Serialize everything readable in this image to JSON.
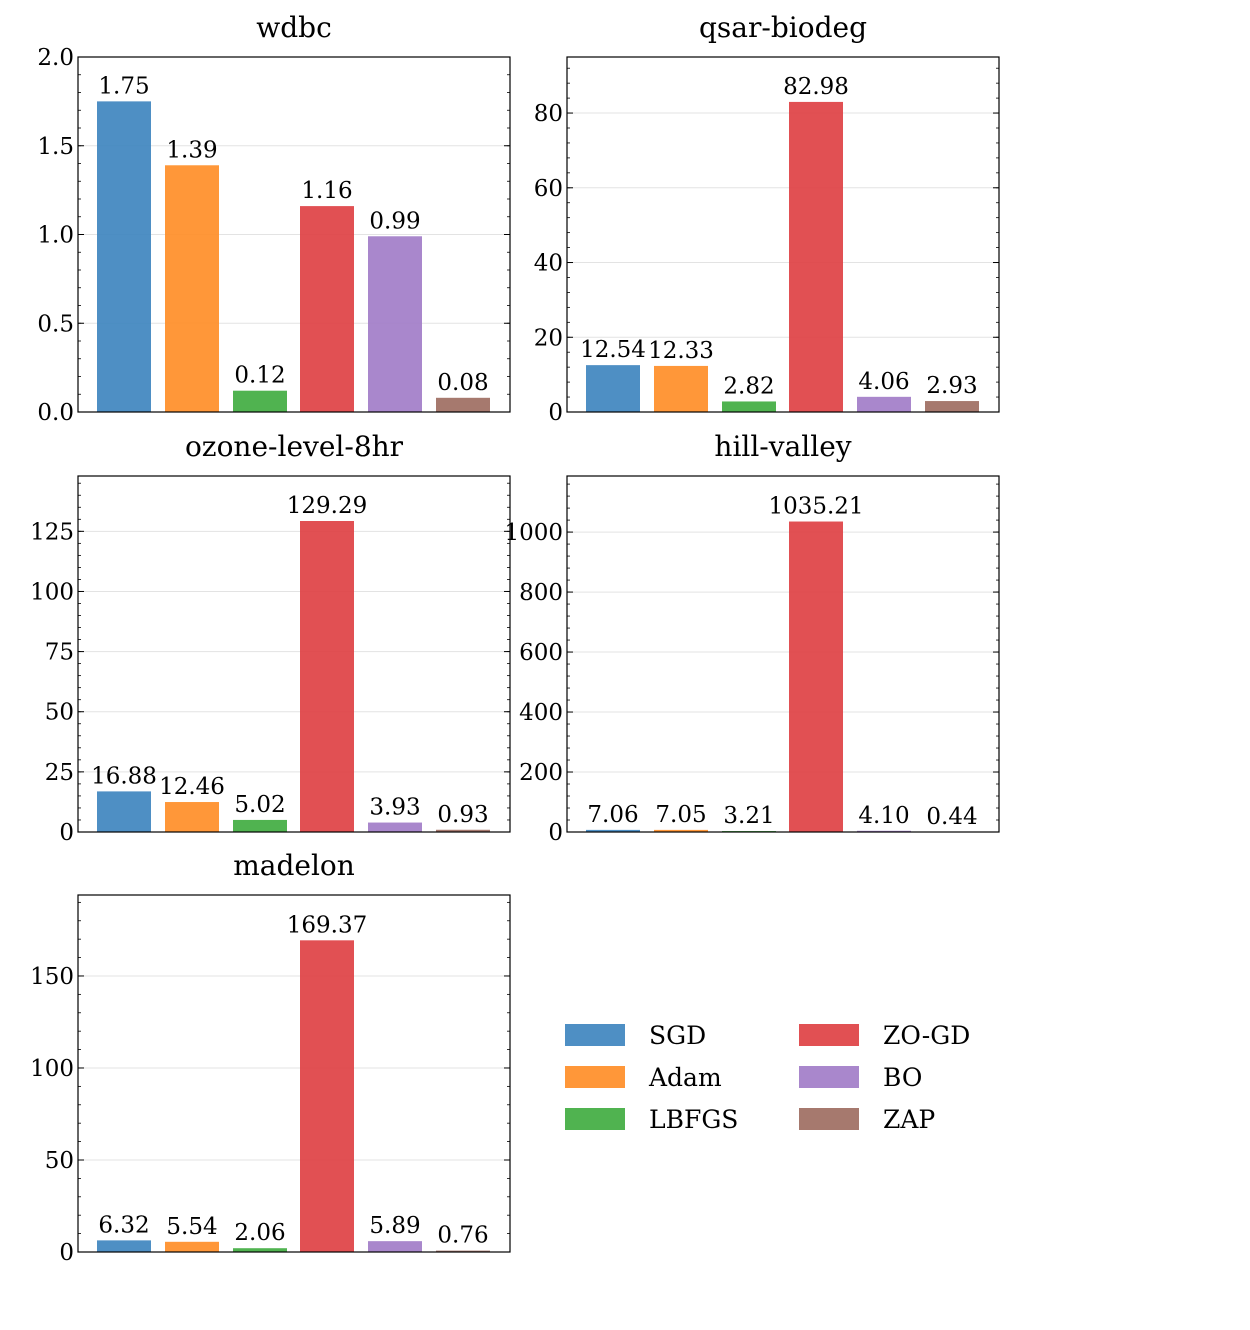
{
  "chart_data": [
    {
      "type": "bar",
      "title": "wdbc",
      "categories": [
        "SGD",
        "Adam",
        "LBFGS",
        "ZO-GD",
        "BO",
        "ZAP"
      ],
      "values": [
        1.75,
        1.39,
        0.12,
        1.16,
        0.99,
        0.08
      ],
      "value_labels": [
        "1.75",
        "1.39",
        "0.12",
        "1.16",
        "0.99",
        "0.08"
      ],
      "ylim": [
        0,
        2.0
      ],
      "yticks": [
        0,
        0.5,
        1.0,
        1.5,
        2.0
      ],
      "ytick_labels": [
        "0.0",
        "0.5",
        "1.0",
        "1.5",
        "2.0"
      ],
      "xlabel": "",
      "ylabel": "",
      "grid": true
    },
    {
      "type": "bar",
      "title": "qsar-biodeg",
      "categories": [
        "SGD",
        "Adam",
        "LBFGS",
        "ZO-GD",
        "BO",
        "ZAP"
      ],
      "values": [
        12.54,
        12.33,
        2.82,
        82.98,
        4.06,
        2.93
      ],
      "value_labels": [
        "12.54",
        "12.33",
        "2.82",
        "82.98",
        "4.06",
        "2.93"
      ],
      "ylim": [
        0,
        95
      ],
      "yticks": [
        0,
        20,
        40,
        60,
        80
      ],
      "ytick_labels": [
        "0",
        "20",
        "40",
        "60",
        "80"
      ],
      "xlabel": "",
      "ylabel": "",
      "grid": true
    },
    {
      "type": "bar",
      "title": "ozone-level-8hr",
      "categories": [
        "SGD",
        "Adam",
        "LBFGS",
        "ZO-GD",
        "BO",
        "ZAP"
      ],
      "values": [
        16.88,
        12.46,
        5.02,
        129.29,
        3.93,
        0.93
      ],
      "value_labels": [
        "16.88",
        "12.46",
        "5.02",
        "129.29",
        "3.93",
        "0.93"
      ],
      "ylim": [
        0,
        148
      ],
      "yticks": [
        0,
        25,
        50,
        75,
        100,
        125
      ],
      "ytick_labels": [
        "0",
        "25",
        "50",
        "75",
        "100",
        "125"
      ],
      "xlabel": "",
      "ylabel": "",
      "grid": true
    },
    {
      "type": "bar",
      "title": "hill-valley",
      "categories": [
        "SGD",
        "Adam",
        "LBFGS",
        "ZO-GD",
        "BO",
        "ZAP"
      ],
      "values": [
        7.06,
        7.05,
        3.21,
        1035.21,
        4.1,
        0.44
      ],
      "value_labels": [
        "7.06",
        "7.05",
        "3.21",
        "1035.21",
        "4.10",
        "0.44"
      ],
      "ylim": [
        0,
        1187
      ],
      "yticks": [
        0,
        200,
        400,
        600,
        800,
        1000
      ],
      "ytick_labels": [
        "0",
        "200",
        "400",
        "600",
        "800",
        "1000"
      ],
      "xlabel": "",
      "ylabel": "",
      "grid": true
    },
    {
      "type": "bar",
      "title": "madelon",
      "categories": [
        "SGD",
        "Adam",
        "LBFGS",
        "ZO-GD",
        "BO",
        "ZAP"
      ],
      "values": [
        6.32,
        5.54,
        2.06,
        169.37,
        5.89,
        0.76
      ],
      "value_labels": [
        "6.32",
        "5.54",
        "2.06",
        "169.37",
        "5.89",
        "0.76"
      ],
      "ylim": [
        0,
        194
      ],
      "yticks": [
        0,
        50,
        100,
        150
      ],
      "ytick_labels": [
        "0",
        "50",
        "100",
        "150"
      ],
      "xlabel": "",
      "ylabel": "",
      "grid": true
    }
  ],
  "legend": {
    "entries": [
      {
        "label": "SGD",
        "color": "#3b83be"
      },
      {
        "label": "Adam",
        "color": "#ff8c24"
      },
      {
        "label": "LBFGS",
        "color": "#3dab3d"
      },
      {
        "label": "ZO-GD",
        "color": "#de3d40"
      },
      {
        "label": "BO",
        "color": "#a07ac6"
      },
      {
        "label": "ZAP",
        "color": "#9c6a5e"
      }
    ],
    "columns": 2,
    "placement": "lower-right empty panel"
  },
  "colors": {
    "bar_opacity": 0.9,
    "grid": "#e3e3e3",
    "frame": "#000000"
  }
}
